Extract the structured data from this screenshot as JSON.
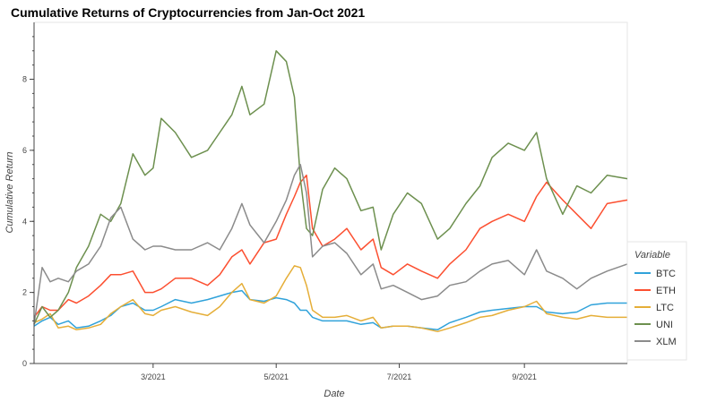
{
  "chart_data": {
    "type": "line",
    "title": "Cumulative Returns of Cryptocurrencies from Jan-Oct 2021",
    "xlabel": "Date",
    "ylabel": "Cumulative Return",
    "x_range": [
      "2021-01-01",
      "2021-10-22"
    ],
    "ylim": [
      0,
      9.6
    ],
    "y_ticks": [
      0,
      2,
      4,
      6,
      8
    ],
    "x_ticks": [
      {
        "date": "2021-03-01",
        "label": "3/2021"
      },
      {
        "date": "2021-05-01",
        "label": "5/2021"
      },
      {
        "date": "2021-07-01",
        "label": "7/2021"
      },
      {
        "date": "2021-09-01",
        "label": "9/2021"
      }
    ],
    "grid": false,
    "legend": {
      "title": "Variable",
      "position": "right"
    },
    "x": [
      "2021-01-01",
      "2021-01-05",
      "2021-01-09",
      "2021-01-13",
      "2021-01-18",
      "2021-01-22",
      "2021-01-28",
      "2021-02-03",
      "2021-02-08",
      "2021-02-13",
      "2021-02-19",
      "2021-02-25",
      "2021-03-01",
      "2021-03-05",
      "2021-03-12",
      "2021-03-20",
      "2021-03-28",
      "2021-04-03",
      "2021-04-09",
      "2021-04-14",
      "2021-04-18",
      "2021-04-25",
      "2021-05-01",
      "2021-05-06",
      "2021-05-10",
      "2021-05-13",
      "2021-05-16",
      "2021-05-19",
      "2021-05-24",
      "2021-05-30",
      "2021-06-05",
      "2021-06-12",
      "2021-06-18",
      "2021-06-22",
      "2021-06-28",
      "2021-07-05",
      "2021-07-12",
      "2021-07-20",
      "2021-07-26",
      "2021-08-03",
      "2021-08-10",
      "2021-08-16",
      "2021-08-24",
      "2021-09-01",
      "2021-09-07",
      "2021-09-12",
      "2021-09-20",
      "2021-09-27",
      "2021-10-04",
      "2021-10-12",
      "2021-10-22"
    ],
    "series": [
      {
        "name": "BTC",
        "color": "#30a2da",
        "values": [
          1.05,
          1.2,
          1.3,
          1.1,
          1.2,
          1.0,
          1.05,
          1.2,
          1.35,
          1.6,
          1.7,
          1.5,
          1.5,
          1.6,
          1.8,
          1.7,
          1.8,
          1.9,
          2.0,
          2.05,
          1.8,
          1.75,
          1.85,
          1.8,
          1.7,
          1.5,
          1.5,
          1.3,
          1.2,
          1.2,
          1.2,
          1.1,
          1.15,
          1.0,
          1.05,
          1.05,
          1.0,
          0.95,
          1.15,
          1.3,
          1.45,
          1.5,
          1.55,
          1.6,
          1.6,
          1.45,
          1.4,
          1.45,
          1.65,
          1.7,
          1.7
        ]
      },
      {
        "name": "ETH",
        "color": "#fc4f30",
        "values": [
          1.3,
          1.6,
          1.5,
          1.5,
          1.8,
          1.7,
          1.9,
          2.2,
          2.5,
          2.5,
          2.6,
          2.0,
          2.0,
          2.1,
          2.4,
          2.4,
          2.2,
          2.5,
          3.0,
          3.2,
          2.8,
          3.4,
          3.5,
          4.2,
          4.7,
          5.1,
          5.3,
          3.8,
          3.3,
          3.5,
          3.8,
          3.2,
          3.5,
          2.7,
          2.5,
          2.8,
          2.6,
          2.4,
          2.8,
          3.2,
          3.8,
          4.0,
          4.2,
          4.0,
          4.7,
          5.1,
          4.6,
          4.2,
          3.8,
          4.5,
          4.6
        ]
      },
      {
        "name": "LTC",
        "color": "#e5ae38",
        "values": [
          1.15,
          1.25,
          1.4,
          1.0,
          1.05,
          0.95,
          1.0,
          1.1,
          1.4,
          1.6,
          1.8,
          1.4,
          1.35,
          1.5,
          1.6,
          1.45,
          1.35,
          1.6,
          2.0,
          2.25,
          1.8,
          1.7,
          1.9,
          2.4,
          2.75,
          2.7,
          2.2,
          1.5,
          1.3,
          1.3,
          1.35,
          1.2,
          1.3,
          1.0,
          1.05,
          1.05,
          1.0,
          0.9,
          1.0,
          1.15,
          1.3,
          1.35,
          1.5,
          1.6,
          1.75,
          1.4,
          1.3,
          1.25,
          1.35,
          1.3,
          1.3
        ]
      },
      {
        "name": "UNI",
        "color": "#6d904f",
        "values": [
          1.1,
          1.6,
          1.3,
          1.5,
          2.0,
          2.7,
          3.3,
          4.2,
          4.0,
          4.5,
          5.9,
          5.3,
          5.5,
          6.9,
          6.5,
          5.8,
          6.0,
          6.5,
          7.0,
          7.8,
          7.0,
          7.3,
          8.8,
          8.5,
          7.5,
          5.2,
          3.8,
          3.6,
          4.9,
          5.5,
          5.2,
          4.3,
          4.4,
          3.2,
          4.2,
          4.8,
          4.5,
          3.5,
          3.8,
          4.5,
          5.0,
          5.8,
          6.2,
          6.0,
          6.5,
          5.2,
          4.2,
          5.0,
          4.8,
          5.3,
          5.2
        ]
      },
      {
        "name": "XLM",
        "color": "#8b8b8b",
        "values": [
          1.1,
          2.7,
          2.3,
          2.4,
          2.3,
          2.6,
          2.8,
          3.3,
          4.1,
          4.4,
          3.5,
          3.2,
          3.3,
          3.3,
          3.2,
          3.2,
          3.4,
          3.2,
          3.8,
          4.5,
          3.9,
          3.4,
          4.0,
          4.6,
          5.3,
          5.6,
          4.8,
          3.0,
          3.3,
          3.4,
          3.1,
          2.5,
          2.8,
          2.1,
          2.2,
          2.0,
          1.8,
          1.9,
          2.2,
          2.3,
          2.6,
          2.8,
          2.9,
          2.5,
          3.2,
          2.6,
          2.4,
          2.1,
          2.4,
          2.6,
          2.8
        ]
      }
    ]
  }
}
